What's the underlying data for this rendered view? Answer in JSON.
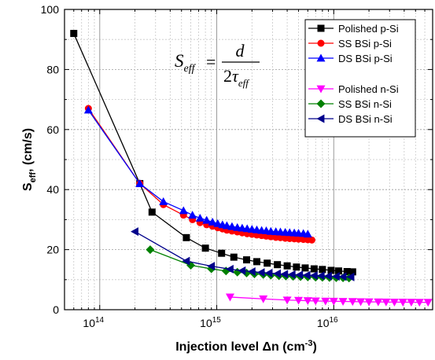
{
  "chart_data": {
    "type": "line",
    "x_scale": "log",
    "xlim": [
      50000000000000.0,
      7e+16
    ],
    "ylim": [
      0,
      100
    ],
    "y_ticks": [
      0,
      20,
      40,
      60,
      80,
      100
    ],
    "x_ticks": [
      {
        "value": 100000000000000.0,
        "base": "10",
        "exp": "14"
      },
      {
        "value": 1000000000000000.0,
        "base": "10",
        "exp": "15"
      },
      {
        "value": 1e+16,
        "base": "10",
        "exp": "16"
      }
    ],
    "grid": true,
    "xlabel": {
      "main": "Injection level ",
      "symbol": "Δn",
      "unit": " (cm",
      "unit_sup": "-3",
      "close": ")"
    },
    "ylabel": {
      "main": "S",
      "sub": "eff",
      "rest": ", (cm/s)"
    },
    "annotation": {
      "lhs": "S",
      "lhs_sub": "eff",
      "eq": "=",
      "numerator": "d",
      "den_prefix": "2",
      "tau": "τ",
      "den_sub": "eff"
    },
    "legend_placement": "top-right",
    "series": [
      {
        "name": "Polished p-Si",
        "color": "#000000",
        "marker": "square",
        "x": [
          60000000000000.0,
          220000000000000.0,
          280000000000000.0,
          550000000000000.0,
          800000000000000.0,
          1100000000000000.0,
          1400000000000000.0,
          1800000000000000.0,
          2200000000000000.0,
          2700000000000000.0,
          3300000000000000.0,
          4000000000000000.0,
          4800000000000000.0,
          5700000000000000.0,
          6800000000000000.0,
          8000000000000000.0,
          9500000000000000.0,
          1.1e+16,
          1.3e+16,
          1.45e+16
        ],
        "y": [
          92,
          42,
          32.5,
          24,
          20.5,
          18.8,
          17.5,
          16.6,
          16,
          15.5,
          15,
          14.6,
          14.2,
          13.9,
          13.6,
          13.4,
          13.1,
          12.9,
          12.7,
          12.6
        ]
      },
      {
        "name": "SS BSi p-Si",
        "color": "#ff0000",
        "marker": "circle",
        "x": [
          80000000000000.0,
          220000000000000.0,
          350000000000000.0,
          520000000000000.0,
          620000000000000.0,
          720000000000000.0,
          820000000000000.0,
          920000000000000.0,
          1020000000000000.0,
          1120000000000000.0,
          1220000000000000.0,
          1350000000000000.0,
          1500000000000000.0,
          1650000000000000.0,
          1820000000000000.0,
          2000000000000000.0,
          2200000000000000.0,
          2420000000000000.0,
          2650000000000000.0,
          2900000000000000.0,
          3200000000000000.0,
          3500000000000000.0,
          3850000000000000.0,
          4200000000000000.0,
          4600000000000000.0,
          5000000000000000.0,
          5500000000000000.0,
          6000000000000000.0,
          6500000000000000.0
        ],
        "y": [
          67,
          42,
          35,
          31.5,
          30,
          29,
          28.3,
          27.8,
          27.3,
          26.9,
          26.5,
          26.2,
          25.9,
          25.6,
          25.3,
          25.1,
          24.9,
          24.7,
          24.5,
          24.3,
          24.1,
          24,
          23.8,
          23.7,
          23.6,
          23.5,
          23.4,
          23.3,
          23.2
        ]
      },
      {
        "name": "DS BSi p-Si",
        "color": "#0000ff",
        "marker": "triangle-up",
        "x": [
          80000000000000.0,
          220000000000000.0,
          350000000000000.0,
          520000000000000.0,
          620000000000000.0,
          720000000000000.0,
          820000000000000.0,
          920000000000000.0,
          1020000000000000.0,
          1120000000000000.0,
          1220000000000000.0,
          1350000000000000.0,
          1500000000000000.0,
          1650000000000000.0,
          1820000000000000.0,
          2000000000000000.0,
          2200000000000000.0,
          2420000000000000.0,
          2650000000000000.0,
          2900000000000000.0,
          3200000000000000.0,
          3500000000000000.0,
          3850000000000000.0,
          4200000000000000.0,
          4600000000000000.0,
          5000000000000000.0,
          5500000000000000.0,
          6000000000000000.0
        ],
        "y": [
          66.5,
          42,
          36,
          33,
          31.5,
          30.5,
          29.8,
          29.2,
          28.7,
          28.3,
          28,
          27.7,
          27.4,
          27.2,
          27,
          26.8,
          26.6,
          26.4,
          26.3,
          26.1,
          26,
          25.9,
          25.8,
          25.7,
          25.6,
          25.5,
          25.4,
          25.2
        ]
      },
      {
        "name": "Polished n-Si",
        "color": "#ff00ff",
        "marker": "triangle-down",
        "x": [
          1300000000000000.0,
          2500000000000000.0,
          4000000000000000.0,
          5000000000000000.0,
          6000000000000000.0,
          7000000000000000.0,
          8500000000000000.0,
          1e+16,
          1.2e+16,
          1.45e+16,
          1.7e+16,
          2e+16,
          2.4e+16,
          2.8e+16,
          3.3e+16,
          3.9e+16,
          4.6e+16,
          5.4e+16,
          6.4e+16
        ],
        "y": [
          4.2,
          3.6,
          3.2,
          3.1,
          3,
          2.9,
          2.85,
          2.8,
          2.75,
          2.7,
          2.65,
          2.6,
          2.58,
          2.55,
          2.52,
          2.5,
          2.48,
          2.46,
          2.45
        ]
      },
      {
        "name": "SS BSi n-Si",
        "color": "#008000",
        "marker": "diamond",
        "x": [
          270000000000000.0,
          600000000000000.0,
          900000000000000.0,
          1200000000000000.0,
          1500000000000000.0,
          1800000000000000.0,
          2100000000000000.0,
          2500000000000000.0,
          2900000000000000.0,
          3400000000000000.0,
          3900000000000000.0,
          4500000000000000.0,
          5200000000000000.0,
          6000000000000000.0,
          7000000000000000.0,
          8000000000000000.0,
          9200000000000000.0,
          1.05e+16,
          1.2e+16,
          1.35e+16
        ],
        "y": [
          20,
          14.8,
          13.6,
          12.9,
          12.5,
          12.2,
          11.9,
          11.7,
          11.5,
          11.3,
          11.2,
          11.1,
          11,
          10.9,
          10.8,
          10.75,
          10.7,
          10.65,
          10.6,
          10.55
        ]
      },
      {
        "name": "DS BSi n-Si",
        "color": "#00008b",
        "marker": "triangle-left",
        "x": [
          200000000000000.0,
          550000000000000.0,
          900000000000000.0,
          1300000000000000.0,
          1650000000000000.0,
          2000000000000000.0,
          2400000000000000.0,
          2800000000000000.0,
          3300000000000000.0,
          3800000000000000.0,
          4400000000000000.0,
          5100000000000000.0,
          5900000000000000.0,
          6800000000000000.0,
          7800000000000000.0,
          9000000000000000.0,
          1.05e+16,
          1.2e+16,
          1.4e+16
        ],
        "y": [
          26,
          16.2,
          14.5,
          13.5,
          13,
          12.7,
          12.4,
          12.2,
          12,
          11.8,
          11.7,
          11.6,
          11.5,
          11.4,
          11.3,
          11.2,
          11.1,
          11,
          10.9
        ]
      }
    ]
  }
}
